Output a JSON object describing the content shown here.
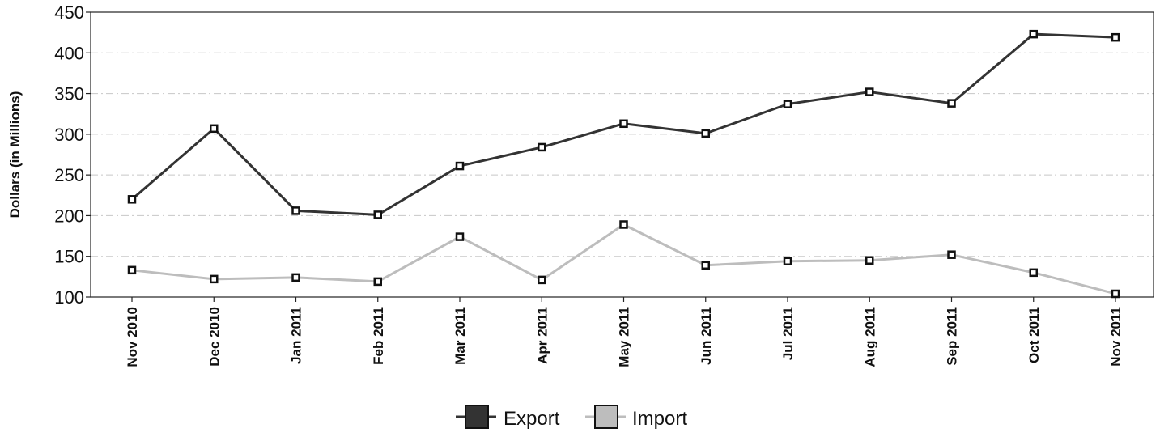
{
  "chart_data": {
    "type": "line",
    "title": "",
    "xlabel": "",
    "ylabel": "Dollars (in Millions)",
    "categories": [
      "Nov 2010",
      "Dec 2010",
      "Jan 2011",
      "Feb 2011",
      "Mar 2011",
      "Apr 2011",
      "May 2011",
      "Jun 2011",
      "Jul 2011",
      "Aug 2011",
      "Sep 2011",
      "Oct 2011",
      "Nov 2011"
    ],
    "ylim": [
      100,
      450
    ],
    "yticks": [
      100,
      150,
      200,
      250,
      300,
      350,
      400,
      450
    ],
    "grid": true,
    "legend_position": "bottom",
    "series": [
      {
        "name": "Export",
        "color": "#333333",
        "values": [
          220,
          307,
          206,
          201,
          261,
          284,
          313,
          301,
          337,
          352,
          338,
          423,
          419
        ]
      },
      {
        "name": "Import",
        "color": "#bdbdbd",
        "values": [
          133,
          122,
          124,
          119,
          174,
          121,
          189,
          139,
          144,
          145,
          152,
          130,
          104
        ]
      }
    ]
  }
}
